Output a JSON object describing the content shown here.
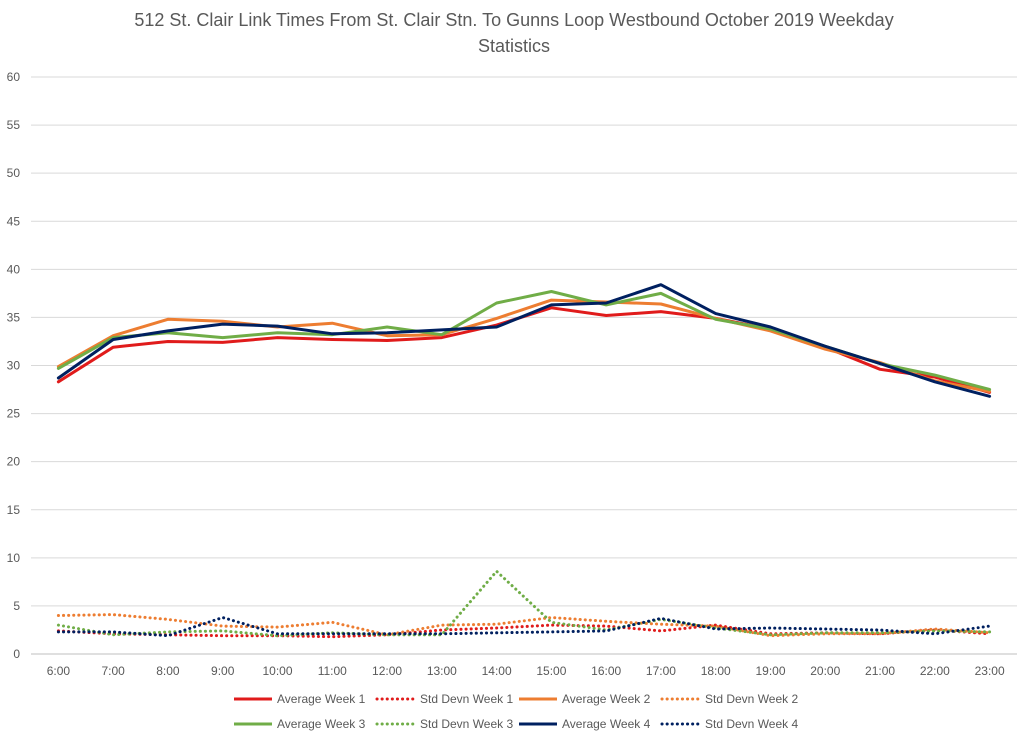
{
  "chart_data": {
    "type": "line",
    "title": "512 St. Clair Link Times From St. Clair Stn. To Gunns Loop Westbound October 2019 Weekday",
    "subtitle": "Statistics",
    "xlabel": "",
    "ylabel": "",
    "ylim": [
      0,
      60
    ],
    "yticks": [
      0,
      5,
      10,
      15,
      20,
      25,
      30,
      35,
      40,
      45,
      50,
      55,
      60
    ],
    "grid": true,
    "legend_position": "bottom",
    "categories": [
      "6:00",
      "7:00",
      "8:00",
      "9:00",
      "10:00",
      "11:00",
      "12:00",
      "13:00",
      "14:00",
      "15:00",
      "16:00",
      "17:00",
      "18:00",
      "19:00",
      "20:00",
      "21:00",
      "22:00",
      "23:00"
    ],
    "series": [
      {
        "name": "Average Week 1",
        "color": "#e01b1b",
        "style": "solid",
        "values": [
          28.3,
          31.9,
          32.5,
          32.4,
          32.9,
          32.7,
          32.6,
          32.9,
          34.2,
          36.0,
          35.2,
          35.6,
          34.9,
          33.8,
          31.9,
          29.6,
          28.8,
          27.2
        ]
      },
      {
        "name": "Std Devn Week 1",
        "color": "#e01b1b",
        "style": "dotted",
        "values": [
          2.4,
          2.1,
          2.0,
          1.9,
          1.9,
          1.8,
          2.0,
          2.5,
          2.7,
          3.0,
          2.9,
          2.4,
          3.0,
          2.1,
          2.2,
          2.1,
          2.5,
          2.1
        ]
      },
      {
        "name": "Average Week 2",
        "color": "#ed7d31",
        "style": "solid",
        "values": [
          29.9,
          33.1,
          34.8,
          34.6,
          34.0,
          34.4,
          33.1,
          33.2,
          34.9,
          36.8,
          36.6,
          36.4,
          34.9,
          33.6,
          31.7,
          30.3,
          28.4,
          27.3
        ]
      },
      {
        "name": "Std Devn Week 2",
        "color": "#ed7d31",
        "style": "dotted",
        "values": [
          4.0,
          4.1,
          3.6,
          2.9,
          2.8,
          3.3,
          2.0,
          3.0,
          3.1,
          3.8,
          3.4,
          3.1,
          2.9,
          1.9,
          2.1,
          2.1,
          2.6,
          2.2
        ]
      },
      {
        "name": "Average Week 3",
        "color": "#70ad47",
        "style": "solid",
        "values": [
          29.7,
          32.9,
          33.4,
          32.9,
          33.4,
          33.2,
          34.0,
          33.2,
          36.5,
          37.7,
          36.3,
          37.5,
          34.8,
          33.8,
          32.0,
          30.2,
          29.0,
          27.5
        ]
      },
      {
        "name": "Std Devn Week 3",
        "color": "#70ad47",
        "style": "dotted",
        "values": [
          3.0,
          2.0,
          2.3,
          2.4,
          1.9,
          2.2,
          2.0,
          2.0,
          8.6,
          3.3,
          2.5,
          3.6,
          2.7,
          2.0,
          2.2,
          2.2,
          2.4,
          2.3
        ]
      },
      {
        "name": "Average Week 4",
        "color": "#002060",
        "style": "solid",
        "values": [
          28.7,
          32.7,
          33.6,
          34.3,
          34.1,
          33.3,
          33.4,
          33.7,
          34.0,
          36.3,
          36.5,
          38.4,
          35.4,
          34.0,
          32.0,
          30.2,
          28.3,
          26.8
        ]
      },
      {
        "name": "Std Devn Week 4",
        "color": "#002060",
        "style": "dotted",
        "values": [
          2.3,
          2.3,
          1.9,
          3.8,
          2.1,
          2.1,
          2.1,
          2.1,
          2.2,
          2.3,
          2.4,
          3.7,
          2.6,
          2.7,
          2.6,
          2.5,
          2.1,
          2.9
        ]
      }
    ]
  }
}
